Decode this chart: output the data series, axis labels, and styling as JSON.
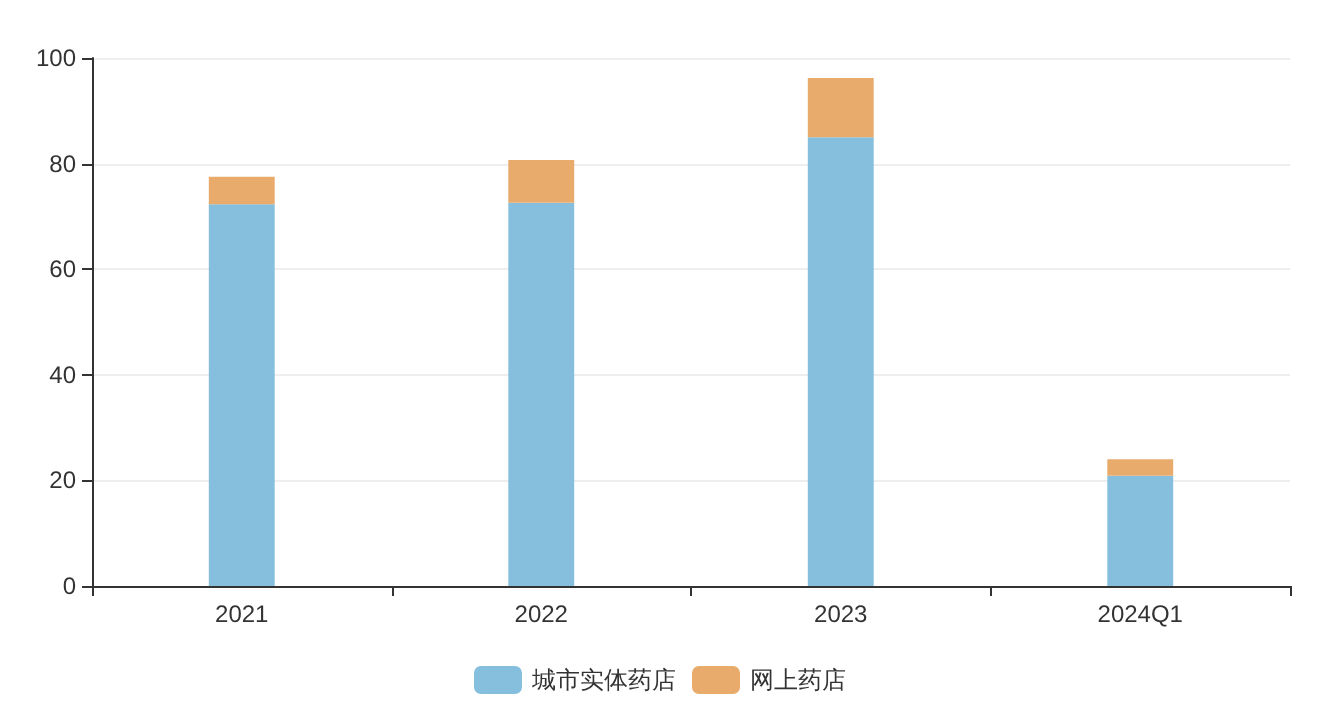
{
  "chart_data": {
    "type": "bar",
    "stacked": true,
    "categories": [
      "2021",
      "2022",
      "2023",
      "2024Q1"
    ],
    "series": [
      {
        "name": "城市实体药店",
        "color": "#86bfdd",
        "values": [
          72.3,
          72.6,
          85.0,
          20.9
        ]
      },
      {
        "name": "网上药店",
        "color": "#e8ab6c",
        "values": [
          5.2,
          8.1,
          11.2,
          3.1
        ]
      }
    ],
    "ylim": [
      0,
      100
    ],
    "yticks": [
      0,
      20,
      40,
      60,
      80,
      100
    ],
    "grid": "y",
    "legend": "bottom"
  }
}
